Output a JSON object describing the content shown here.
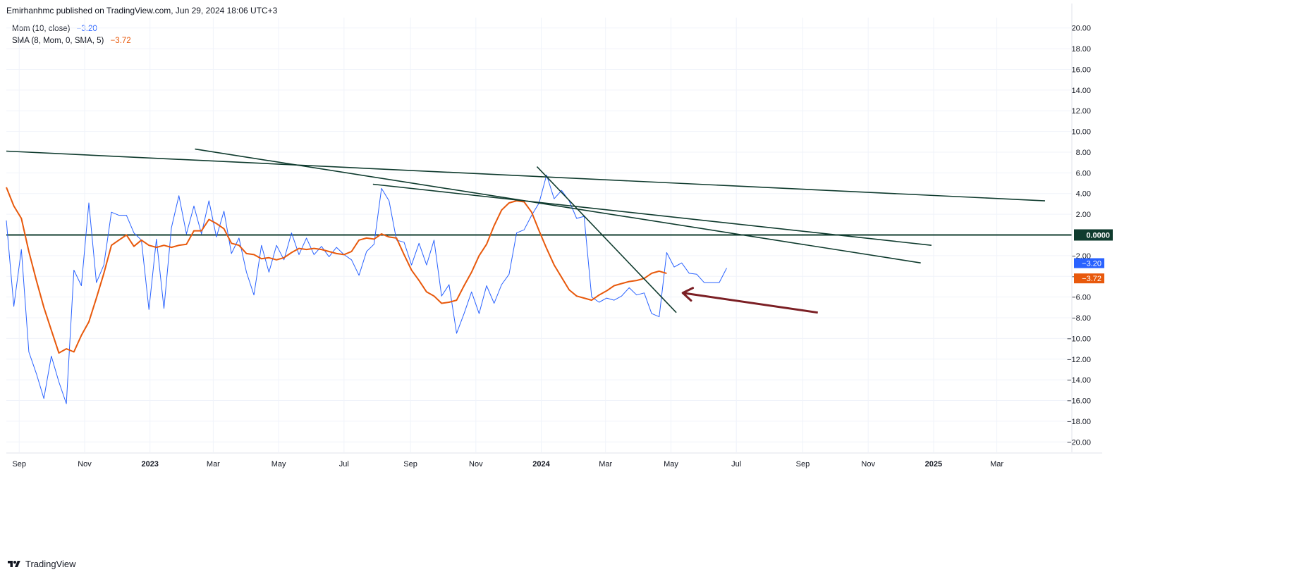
{
  "header": {
    "text": "Emirhanhmc published on TradingView.com, Jun 29, 2024 18:06 UTC+3"
  },
  "legend": [
    {
      "label": "Mom (10, close)",
      "value": "−3.20",
      "color": "#2962ff"
    },
    {
      "label": "SMA (8, Mom, 0, SMA, 5)",
      "value": "−3.72",
      "color": "#e8590c"
    }
  ],
  "footer": {
    "brand": "TradingView"
  },
  "colors": {
    "mom": "#2962ff",
    "sma": "#e8590c",
    "trendline": "#0f3b2e",
    "zero_line": "#0f3b2e",
    "arrow": "#7b1f24",
    "grid": "#f0f3fa"
  },
  "chart_data": {
    "type": "line",
    "ylim": [
      -21,
      21
    ],
    "xlim": [
      "2022-08-20",
      "2025-05-10"
    ],
    "y_ticks": [
      {
        "value": 20,
        "label": "20.00"
      },
      {
        "value": 18,
        "label": "18.00"
      },
      {
        "value": 16,
        "label": "16.00"
      },
      {
        "value": 14,
        "label": "14.00"
      },
      {
        "value": 12,
        "label": "12.00"
      },
      {
        "value": 10,
        "label": "10.00"
      },
      {
        "value": 8,
        "label": "8.00"
      },
      {
        "value": 6,
        "label": "6.00"
      },
      {
        "value": 4,
        "label": "4.00"
      },
      {
        "value": 2,
        "label": "2.00"
      },
      {
        "value": -2,
        "label": "−2.00"
      },
      {
        "value": -4,
        "label": "−4.00"
      },
      {
        "value": -6,
        "label": "−6.00"
      },
      {
        "value": -8,
        "label": "−8.00"
      },
      {
        "value": -10,
        "label": "−10.00"
      },
      {
        "value": -12,
        "label": "−12.00"
      },
      {
        "value": -14,
        "label": "−14.00"
      },
      {
        "value": -16,
        "label": "−16.00"
      },
      {
        "value": -18,
        "label": "−18.00"
      },
      {
        "value": -20,
        "label": "−20.00"
      }
    ],
    "x_ticks": [
      {
        "date": "2022-09-01",
        "label": "Sep",
        "bold": false
      },
      {
        "date": "2022-11-01",
        "label": "Nov",
        "bold": false
      },
      {
        "date": "2023-01-01",
        "label": "2023",
        "bold": true
      },
      {
        "date": "2023-03-01",
        "label": "Mar",
        "bold": false
      },
      {
        "date": "2023-05-01",
        "label": "May",
        "bold": false
      },
      {
        "date": "2023-07-01",
        "label": "Jul",
        "bold": false
      },
      {
        "date": "2023-09-01",
        "label": "Sep",
        "bold": false
      },
      {
        "date": "2023-11-01",
        "label": "Nov",
        "bold": false
      },
      {
        "date": "2024-01-01",
        "label": "2024",
        "bold": true
      },
      {
        "date": "2024-03-01",
        "label": "Mar",
        "bold": false
      },
      {
        "date": "2024-05-01",
        "label": "May",
        "bold": false
      },
      {
        "date": "2024-07-01",
        "label": "Jul",
        "bold": false
      },
      {
        "date": "2024-09-01",
        "label": "Sep",
        "bold": false
      },
      {
        "date": "2024-11-01",
        "label": "Nov",
        "bold": false
      },
      {
        "date": "2025-01-01",
        "label": "2025",
        "bold": true
      },
      {
        "date": "2025-03-01",
        "label": "Mar",
        "bold": false
      }
    ],
    "zero_label": "0.0000",
    "last_values": [
      {
        "series": "Mom (10, close)",
        "label": "−3.20",
        "value": -3.2,
        "color": "#2962ff"
      },
      {
        "series": "SMA (8, Mom, 0, SMA, 5)",
        "label": "−3.72",
        "value": -3.72,
        "color": "#e8590c"
      }
    ],
    "series": [
      {
        "name": "Mom (10, close)",
        "color": "#2962ff",
        "points": [
          [
            "2022-08-20",
            1.4
          ],
          [
            "2022-08-27",
            -6.9
          ],
          [
            "2022-09-03",
            -1.4
          ],
          [
            "2022-09-10",
            -11.3
          ],
          [
            "2022-09-17",
            -13.4
          ],
          [
            "2022-09-24",
            -15.8
          ],
          [
            "2022-10-01",
            -11.7
          ],
          [
            "2022-10-08",
            -14.2
          ],
          [
            "2022-10-15",
            -16.3
          ],
          [
            "2022-10-22",
            -3.4
          ],
          [
            "2022-10-29",
            -4.9
          ],
          [
            "2022-11-05",
            3.1
          ],
          [
            "2022-11-12",
            -4.6
          ],
          [
            "2022-11-19",
            -2.9
          ],
          [
            "2022-11-26",
            2.2
          ],
          [
            "2022-12-03",
            1.9
          ],
          [
            "2022-12-10",
            1.9
          ],
          [
            "2022-12-17",
            0.2
          ],
          [
            "2022-12-24",
            -0.5
          ],
          [
            "2022-12-31",
            -7.2
          ],
          [
            "2023-01-07",
            -0.4
          ],
          [
            "2023-01-14",
            -7.1
          ],
          [
            "2023-01-21",
            0.7
          ],
          [
            "2023-01-28",
            3.8
          ],
          [
            "2023-02-04",
            0.1
          ],
          [
            "2023-02-11",
            2.8
          ],
          [
            "2023-02-18",
            0.1
          ],
          [
            "2023-02-25",
            3.3
          ],
          [
            "2023-03-04",
            -0.2
          ],
          [
            "2023-03-11",
            2.3
          ],
          [
            "2023-03-18",
            -1.8
          ],
          [
            "2023-03-25",
            -0.3
          ],
          [
            "2023-04-01",
            -3.6
          ],
          [
            "2023-04-08",
            -5.8
          ],
          [
            "2023-04-15",
            -1.0
          ],
          [
            "2023-04-22",
            -3.6
          ],
          [
            "2023-04-29",
            -1.0
          ],
          [
            "2023-05-06",
            -2.4
          ],
          [
            "2023-05-13",
            0.2
          ],
          [
            "2023-05-20",
            -1.9
          ],
          [
            "2023-05-27",
            -0.3
          ],
          [
            "2023-06-03",
            -1.9
          ],
          [
            "2023-06-10",
            -1.1
          ],
          [
            "2023-06-17",
            -2.1
          ],
          [
            "2023-06-24",
            -1.2
          ],
          [
            "2023-07-01",
            -1.9
          ],
          [
            "2023-07-08",
            -2.4
          ],
          [
            "2023-07-15",
            -3.9
          ],
          [
            "2023-07-22",
            -1.6
          ],
          [
            "2023-07-29",
            -0.9
          ],
          [
            "2023-08-05",
            4.5
          ],
          [
            "2023-08-12",
            3.3
          ],
          [
            "2023-08-19",
            -0.5
          ],
          [
            "2023-08-26",
            -0.7
          ],
          [
            "2023-09-02",
            -2.9
          ],
          [
            "2023-09-09",
            -0.8
          ],
          [
            "2023-09-16",
            -2.9
          ],
          [
            "2023-09-23",
            -0.5
          ],
          [
            "2023-09-30",
            -5.9
          ],
          [
            "2023-10-07",
            -4.8
          ],
          [
            "2023-10-14",
            -9.5
          ],
          [
            "2023-10-21",
            -7.6
          ],
          [
            "2023-10-28",
            -5.5
          ],
          [
            "2023-11-04",
            -7.6
          ],
          [
            "2023-11-11",
            -4.9
          ],
          [
            "2023-11-18",
            -6.6
          ],
          [
            "2023-11-25",
            -4.8
          ],
          [
            "2023-12-02",
            -3.8
          ],
          [
            "2023-12-09",
            0.2
          ],
          [
            "2023-12-16",
            0.5
          ],
          [
            "2023-12-23",
            1.9
          ],
          [
            "2023-12-30",
            3.1
          ],
          [
            "2024-01-06",
            5.8
          ],
          [
            "2024-01-13",
            3.5
          ],
          [
            "2024-01-20",
            4.3
          ],
          [
            "2024-01-27",
            3.3
          ],
          [
            "2024-02-03",
            1.6
          ],
          [
            "2024-02-10",
            1.8
          ],
          [
            "2024-02-17",
            -6.0
          ],
          [
            "2024-02-24",
            -6.5
          ],
          [
            "2024-03-02",
            -6.1
          ],
          [
            "2024-03-09",
            -6.3
          ],
          [
            "2024-03-16",
            -5.9
          ],
          [
            "2024-03-23",
            -5.1
          ],
          [
            "2024-03-30",
            -5.8
          ],
          [
            "2024-04-06",
            -5.6
          ],
          [
            "2024-04-13",
            -7.6
          ],
          [
            "2024-04-20",
            -7.9
          ],
          [
            "2024-04-27",
            -1.7
          ],
          [
            "2024-05-04",
            -3.1
          ],
          [
            "2024-05-11",
            -2.7
          ],
          [
            "2024-05-18",
            -3.7
          ],
          [
            "2024-05-25",
            -3.8
          ],
          [
            "2024-06-01",
            -4.6
          ],
          [
            "2024-06-08",
            -4.6
          ],
          [
            "2024-06-15",
            -4.6
          ],
          [
            "2024-06-22",
            -3.2
          ]
        ]
      },
      {
        "name": "SMA (8, Mom, 0, SMA, 5)",
        "color": "#e8590c",
        "points": [
          [
            "2022-08-20",
            4.6
          ],
          [
            "2022-08-27",
            2.8
          ],
          [
            "2022-09-03",
            1.6
          ],
          [
            "2022-09-10",
            -1.6
          ],
          [
            "2022-09-17",
            -4.4
          ],
          [
            "2022-09-24",
            -7.0
          ],
          [
            "2022-10-01",
            -9.2
          ],
          [
            "2022-10-08",
            -11.4
          ],
          [
            "2022-10-15",
            -11.0
          ],
          [
            "2022-10-22",
            -11.3
          ],
          [
            "2022-10-29",
            -9.7
          ],
          [
            "2022-11-05",
            -8.4
          ],
          [
            "2022-11-12",
            -6.1
          ],
          [
            "2022-11-19",
            -3.7
          ],
          [
            "2022-11-26",
            -1.0
          ],
          [
            "2022-12-03",
            -0.5
          ],
          [
            "2022-12-10",
            0.0
          ],
          [
            "2022-12-17",
            -1.1
          ],
          [
            "2022-12-24",
            -0.5
          ],
          [
            "2022-12-31",
            -1.0
          ],
          [
            "2023-01-07",
            -1.2
          ],
          [
            "2023-01-14",
            -1.0
          ],
          [
            "2023-01-21",
            -1.2
          ],
          [
            "2023-01-28",
            -1.0
          ],
          [
            "2023-02-04",
            -0.9
          ],
          [
            "2023-02-11",
            0.4
          ],
          [
            "2023-02-18",
            0.4
          ],
          [
            "2023-02-25",
            1.5
          ],
          [
            "2023-03-04",
            1.1
          ],
          [
            "2023-03-11",
            0.6
          ],
          [
            "2023-03-18",
            -0.8
          ],
          [
            "2023-03-25",
            -1.0
          ],
          [
            "2023-04-01",
            -1.8
          ],
          [
            "2023-04-08",
            -1.9
          ],
          [
            "2023-04-15",
            -2.3
          ],
          [
            "2023-04-22",
            -2.2
          ],
          [
            "2023-04-29",
            -2.4
          ],
          [
            "2023-05-06",
            -2.2
          ],
          [
            "2023-05-13",
            -1.7
          ],
          [
            "2023-05-20",
            -1.3
          ],
          [
            "2023-05-27",
            -1.4
          ],
          [
            "2023-06-03",
            -1.3
          ],
          [
            "2023-06-10",
            -1.4
          ],
          [
            "2023-06-17",
            -1.6
          ],
          [
            "2023-06-24",
            -1.8
          ],
          [
            "2023-07-01",
            -1.9
          ],
          [
            "2023-07-08",
            -1.6
          ],
          [
            "2023-07-15",
            -0.5
          ],
          [
            "2023-07-22",
            -0.3
          ],
          [
            "2023-07-29",
            -0.4
          ],
          [
            "2023-08-05",
            0.1
          ],
          [
            "2023-08-12",
            -0.2
          ],
          [
            "2023-08-19",
            -0.3
          ],
          [
            "2023-08-26",
            -1.9
          ],
          [
            "2023-09-02",
            -3.4
          ],
          [
            "2023-09-09",
            -4.4
          ],
          [
            "2023-09-16",
            -5.5
          ],
          [
            "2023-09-23",
            -5.9
          ],
          [
            "2023-09-30",
            -6.6
          ],
          [
            "2023-10-07",
            -6.5
          ],
          [
            "2023-10-14",
            -6.3
          ],
          [
            "2023-10-21",
            -4.9
          ],
          [
            "2023-10-28",
            -3.6
          ],
          [
            "2023-11-04",
            -2.0
          ],
          [
            "2023-11-11",
            -0.9
          ],
          [
            "2023-11-18",
            0.9
          ],
          [
            "2023-11-25",
            2.4
          ],
          [
            "2023-12-02",
            3.1
          ],
          [
            "2023-12-09",
            3.3
          ],
          [
            "2023-12-16",
            3.2
          ],
          [
            "2023-12-23",
            2.2
          ],
          [
            "2023-12-30",
            0.4
          ],
          [
            "2024-01-06",
            -1.3
          ],
          [
            "2024-01-13",
            -2.9
          ],
          [
            "2024-01-20",
            -4.1
          ],
          [
            "2024-01-27",
            -5.3
          ],
          [
            "2024-02-03",
            -5.9
          ],
          [
            "2024-02-10",
            -6.1
          ],
          [
            "2024-02-17",
            -6.3
          ],
          [
            "2024-02-24",
            -5.8
          ],
          [
            "2024-03-02",
            -5.4
          ],
          [
            "2024-03-09",
            -4.9
          ],
          [
            "2024-03-16",
            -4.7
          ],
          [
            "2024-03-23",
            -4.5
          ],
          [
            "2024-03-30",
            -4.4
          ],
          [
            "2024-04-06",
            -4.2
          ],
          [
            "2024-04-13",
            -3.7
          ],
          [
            "2024-04-20",
            -3.5
          ],
          [
            "2024-04-27",
            -3.72
          ]
        ]
      }
    ],
    "annotations": [
      {
        "type": "trendline",
        "from": [
          "2022-08-20",
          8.1
        ],
        "to": [
          "2025-04-15",
          3.3
        ]
      },
      {
        "type": "trendline",
        "from": [
          "2023-02-12",
          8.3
        ],
        "to": [
          "2024-12-20",
          -2.7
        ]
      },
      {
        "type": "trendline",
        "from": [
          "2023-07-28",
          4.9
        ],
        "to": [
          "2024-12-30",
          -1.0
        ]
      },
      {
        "type": "trendline",
        "from": [
          "2023-12-28",
          6.6
        ],
        "to": [
          "2024-05-06",
          -7.5
        ]
      },
      {
        "type": "arrow",
        "from": [
          "2024-09-15",
          -7.5
        ],
        "to": [
          "2024-05-12",
          -5.6
        ]
      }
    ]
  }
}
